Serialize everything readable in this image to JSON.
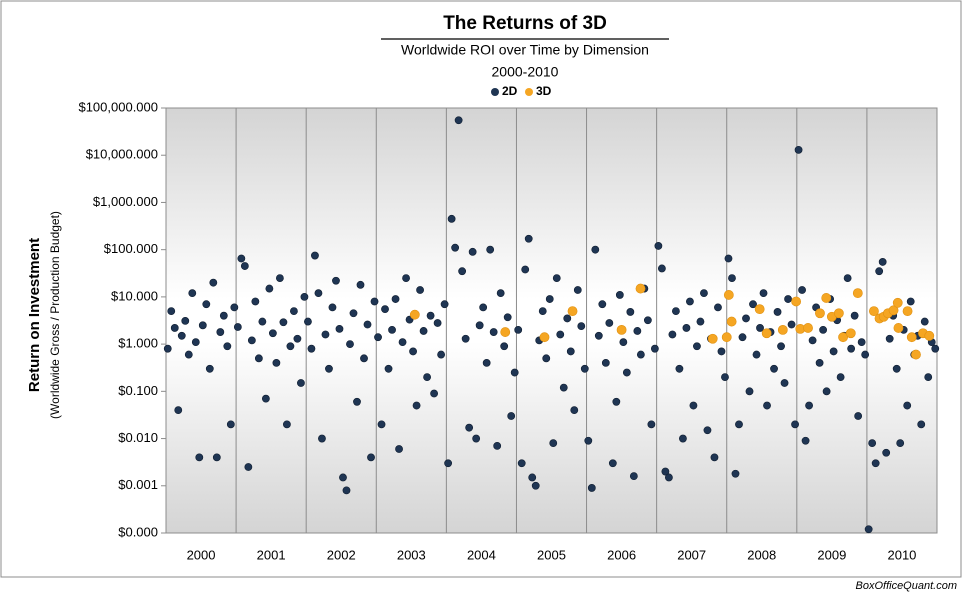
{
  "chart_data": {
    "type": "scatter",
    "title": "The Returns of 3D",
    "subtitle": "Worldwide ROI over Time by Dimension",
    "period": "2000-2010",
    "y_label": "Return on Investment",
    "y_label_sub": "(Worldwide Gross / Production Budget)",
    "source": "BoxOfficeQuant.com",
    "log_y": true,
    "xlim": [
      2000,
      2011
    ],
    "xticks": [
      {
        "value": 2000.5,
        "label": "2000"
      },
      {
        "value": 2001.5,
        "label": "2001"
      },
      {
        "value": 2002.5,
        "label": "2002"
      },
      {
        "value": 2003.5,
        "label": "2003"
      },
      {
        "value": 2004.5,
        "label": "2004"
      },
      {
        "value": 2005.5,
        "label": "2005"
      },
      {
        "value": 2006.5,
        "label": "2006"
      },
      {
        "value": 2007.5,
        "label": "2007"
      },
      {
        "value": 2008.5,
        "label": "2008"
      },
      {
        "value": 2009.5,
        "label": "2009"
      },
      {
        "value": 2010.5,
        "label": "2010"
      }
    ],
    "xgrid": [
      2001,
      2002,
      2003,
      2004,
      2005,
      2006,
      2007,
      2008,
      2009,
      2010
    ],
    "ylim": [
      0.0001,
      100000
    ],
    "yticks": [
      {
        "value": 0.0001,
        "label": "$0.000"
      },
      {
        "value": 0.001,
        "label": "$0.001"
      },
      {
        "value": 0.01,
        "label": "$0.010"
      },
      {
        "value": 0.1,
        "label": "$0.100"
      },
      {
        "value": 1,
        "label": "$1.000"
      },
      {
        "value": 10,
        "label": "$10.000"
      },
      {
        "value": 100,
        "label": "$100.000"
      },
      {
        "value": 1000,
        "label": "$1,000.000"
      },
      {
        "value": 10000,
        "label": "$10,000.000"
      },
      {
        "value": 100000,
        "label": "$100,000.000"
      }
    ],
    "legend": "top",
    "series": [
      {
        "name": "2D",
        "color": "#1f3553",
        "x": [
          2000.025,
          2000.075,
          2000.125,
          2000.175,
          2000.225,
          2000.275,
          2000.325,
          2000.375,
          2000.425,
          2000.475,
          2000.525,
          2000.575,
          2000.625,
          2000.675,
          2000.725,
          2000.775,
          2000.825,
          2000.875,
          2000.925,
          2000.975,
          2001.025,
          2001.075,
          2001.125,
          2001.175,
          2001.225,
          2001.275,
          2001.325,
          2001.375,
          2001.425,
          2001.475,
          2001.525,
          2001.575,
          2001.625,
          2001.675,
          2001.725,
          2001.775,
          2001.825,
          2001.875,
          2001.925,
          2001.975,
          2002.025,
          2002.075,
          2002.125,
          2002.175,
          2002.225,
          2002.275,
          2002.325,
          2002.375,
          2002.425,
          2002.475,
          2002.525,
          2002.575,
          2002.625,
          2002.675,
          2002.725,
          2002.775,
          2002.825,
          2002.875,
          2002.925,
          2002.975,
          2003.025,
          2003.075,
          2003.125,
          2003.175,
          2003.225,
          2003.275,
          2003.325,
          2003.375,
          2003.425,
          2003.475,
          2003.525,
          2003.575,
          2003.625,
          2003.675,
          2003.725,
          2003.775,
          2003.825,
          2003.875,
          2003.925,
          2003.975,
          2004.025,
          2004.075,
          2004.125,
          2004.175,
          2004.225,
          2004.275,
          2004.325,
          2004.375,
          2004.425,
          2004.475,
          2004.525,
          2004.575,
          2004.625,
          2004.675,
          2004.725,
          2004.775,
          2004.825,
          2004.875,
          2004.925,
          2004.975,
          2005.025,
          2005.075,
          2005.125,
          2005.175,
          2005.225,
          2005.275,
          2005.325,
          2005.375,
          2005.425,
          2005.475,
          2005.525,
          2005.575,
          2005.625,
          2005.675,
          2005.725,
          2005.775,
          2005.825,
          2005.875,
          2005.925,
          2005.975,
          2006.025,
          2006.075,
          2006.125,
          2006.175,
          2006.225,
          2006.275,
          2006.325,
          2006.375,
          2006.425,
          2006.475,
          2006.525,
          2006.575,
          2006.625,
          2006.675,
          2006.725,
          2006.775,
          2006.825,
          2006.875,
          2006.925,
          2006.975,
          2007.025,
          2007.075,
          2007.125,
          2007.175,
          2007.225,
          2007.275,
          2007.325,
          2007.375,
          2007.425,
          2007.475,
          2007.525,
          2007.575,
          2007.625,
          2007.675,
          2007.725,
          2007.775,
          2007.825,
          2007.875,
          2007.925,
          2007.975,
          2008.025,
          2008.075,
          2008.125,
          2008.175,
          2008.225,
          2008.275,
          2008.325,
          2008.375,
          2008.425,
          2008.475,
          2008.525,
          2008.575,
          2008.625,
          2008.675,
          2008.725,
          2008.775,
          2008.825,
          2008.875,
          2008.925,
          2008.975,
          2009.025,
          2009.075,
          2009.125,
          2009.175,
          2009.225,
          2009.275,
          2009.325,
          2009.375,
          2009.425,
          2009.475,
          2009.525,
          2009.575,
          2009.625,
          2009.675,
          2009.725,
          2009.775,
          2009.825,
          2009.875,
          2009.925,
          2009.975,
          2010.025,
          2010.075,
          2010.125,
          2010.175,
          2010.225,
          2010.275,
          2010.325,
          2010.375,
          2010.425,
          2010.475,
          2010.525,
          2010.575,
          2010.625,
          2010.675,
          2010.725,
          2010.775,
          2010.825,
          2010.875,
          2010.925,
          2010.975
        ],
        "values": [
          0.8,
          5,
          2.2,
          0.04,
          1.5,
          3.1,
          0.6,
          12,
          1.1,
          0.004,
          2.5,
          7,
          0.3,
          20,
          0.004,
          1.8,
          4,
          0.9,
          0.02,
          6,
          2.3,
          65,
          45,
          0.0025,
          1.2,
          8,
          0.5,
          3,
          0.07,
          15,
          1.7,
          0.4,
          25,
          2.9,
          0.02,
          0.9,
          5,
          1.3,
          0.15,
          10,
          3,
          0.8,
          75,
          12,
          0.01,
          1.6,
          0.3,
          6,
          22,
          2.1,
          0.0015,
          0.0008,
          1,
          4.5,
          0.06,
          18,
          0.5,
          2.6,
          0.004,
          8,
          1.4,
          0.02,
          5.5,
          0.3,
          2,
          9,
          0.006,
          1.1,
          25,
          3.3,
          0.7,
          0.05,
          14,
          1.9,
          0.2,
          4,
          0.09,
          2.8,
          0.6,
          7,
          0.003,
          450,
          110,
          55000,
          35,
          1.3,
          0.017,
          90,
          0.01,
          2.5,
          6,
          0.4,
          100,
          1.8,
          0.007,
          12,
          0.9,
          3.7,
          0.03,
          0.25,
          2,
          0.003,
          38,
          170,
          0.0015,
          0.001,
          1.2,
          5,
          0.5,
          9,
          0.008,
          25,
          1.6,
          0.12,
          3.5,
          0.7,
          0.04,
          14,
          2.4,
          0.3,
          0.009,
          0.0009,
          100,
          1.5,
          7,
          0.4,
          2.8,
          0.003,
          0.06,
          11,
          1.1,
          0.25,
          4.8,
          0.0016,
          1.9,
          0.6,
          15,
          3.2,
          0.02,
          0.8,
          120,
          40,
          0.002,
          0.0015,
          1.6,
          5,
          0.3,
          0.01,
          2.2,
          8,
          0.05,
          0.9,
          3,
          12,
          0.015,
          1.3,
          0.004,
          6,
          0.7,
          0.2,
          65,
          25,
          0.0018,
          0.02,
          1.4,
          3.5,
          0.1,
          7,
          0.6,
          2.2,
          12,
          0.05,
          1.8,
          0.3,
          4.8,
          0.9,
          0.15,
          9,
          2.6,
          0.02,
          13000,
          14,
          0.009,
          0.05,
          1.2,
          6,
          0.4,
          2,
          0.1,
          9,
          0.7,
          3.2,
          0.2,
          1.5,
          25,
          0.8,
          4,
          0.03,
          1.1,
          0.6,
          0.00012,
          0.008,
          0.003,
          35,
          55,
          0.005,
          1.3,
          4,
          0.3,
          0.008,
          2,
          0.05,
          8,
          0.6,
          1.5,
          0.02,
          3,
          0.2,
          1.1,
          0.8
        ]
      },
      {
        "name": "3D",
        "color": "#f5a623",
        "x": [
          2003.55,
          2004.84,
          2005.4,
          2005.8,
          2006.5,
          2006.77,
          2007.8,
          2008.0,
          2008.03,
          2008.07,
          2008.47,
          2008.57,
          2008.8,
          2008.99,
          2009.05,
          2009.16,
          2009.33,
          2009.42,
          2009.5,
          2009.6,
          2009.66,
          2009.77,
          2009.87,
          2010.1,
          2010.18,
          2010.24,
          2010.3,
          2010.38,
          2010.44,
          2010.45,
          2010.58,
          2010.64,
          2010.7,
          2010.8,
          2010.89
        ],
        "values": [
          4.2,
          1.8,
          1.4,
          5,
          2,
          15,
          1.3,
          1.4,
          11,
          3,
          5.5,
          1.7,
          2,
          8,
          2.1,
          2.2,
          4.5,
          9.5,
          3.8,
          4.5,
          1.4,
          1.7,
          12,
          5,
          3.5,
          3.8,
          4.5,
          5.2,
          7.5,
          2.2,
          5,
          1.4,
          0.6,
          1.7,
          1.5
        ]
      }
    ]
  }
}
